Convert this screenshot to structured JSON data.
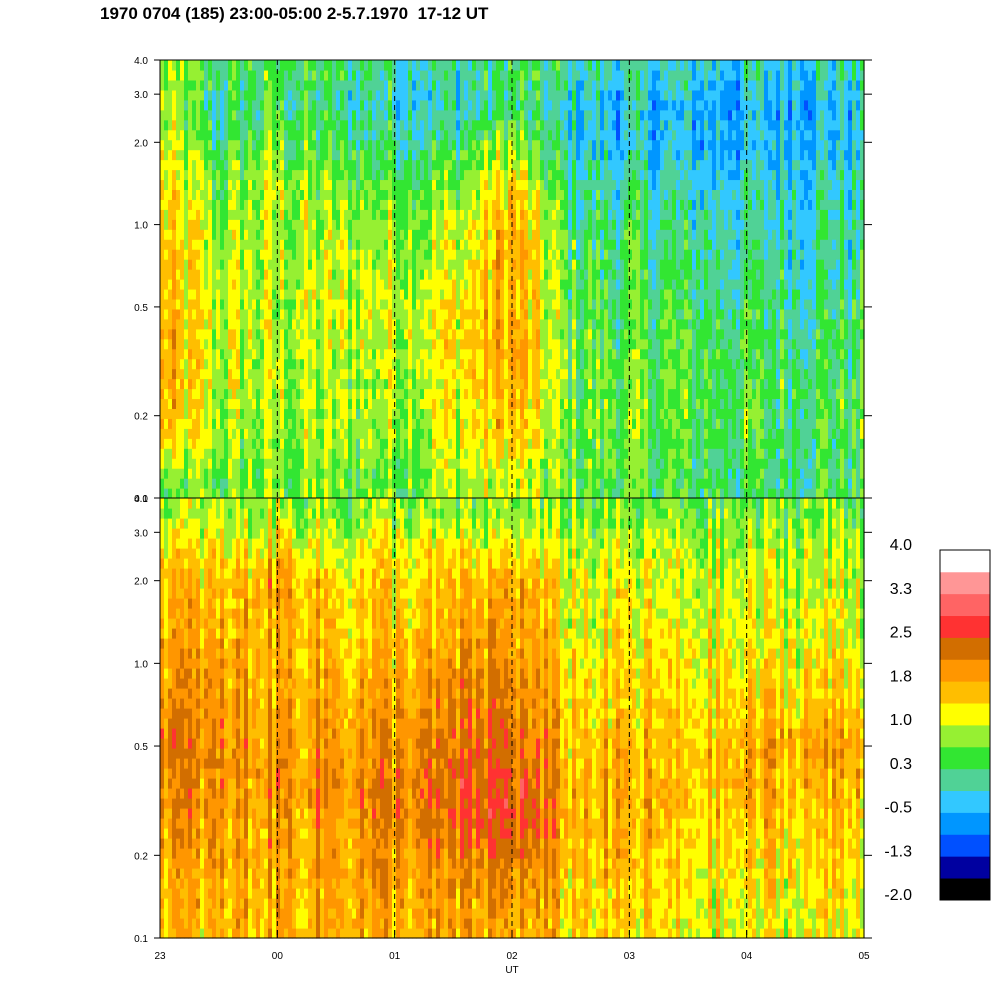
{
  "title": "1970 0704 (185) 23:00-05:00 2-5.7.1970  17-12 UT",
  "chart_data": [
    {
      "type": "heatmap",
      "panel": "top",
      "y_scale": "log",
      "ylim": [
        0.1,
        4.0
      ],
      "y_ticks": [
        0.1,
        0.2,
        0.5,
        1.0,
        2.0,
        3.0,
        4.0
      ],
      "y_tick_labels": [
        "0.1",
        "0.2",
        "0.5",
        "1.0",
        "2.0",
        "3.0",
        "4.0"
      ],
      "xlim": [
        23,
        29
      ],
      "x_marker_hours": [
        24,
        25,
        26,
        27,
        28
      ],
      "rows_log_freq": [
        0.12,
        0.18,
        0.25,
        0.35,
        0.5,
        0.7,
        1.0,
        1.4,
        2.0,
        2.7,
        3.5
      ],
      "cols_hour": [
        23.0,
        23.5,
        24.0,
        24.5,
        25.0,
        25.5,
        26.0,
        26.5,
        27.0,
        27.5,
        28.0,
        28.5
      ],
      "values": [
        [
          0.6,
          0.6,
          0.7,
          0.6,
          0.6,
          0.9,
          1.0,
          0.5,
          0.5,
          0.3,
          0.3,
          0.3
        ],
        [
          1.6,
          0.9,
          0.8,
          0.8,
          0.9,
          1.1,
          1.6,
          0.6,
          0.6,
          0.4,
          0.4,
          0.4
        ],
        [
          1.6,
          0.9,
          0.9,
          0.8,
          0.9,
          1.2,
          1.7,
          0.6,
          0.6,
          0.5,
          0.4,
          0.4
        ],
        [
          1.7,
          1.0,
          0.9,
          0.9,
          1.0,
          1.3,
          1.8,
          0.6,
          0.5,
          0.4,
          0.4,
          0.3
        ],
        [
          1.6,
          1.0,
          0.9,
          1.0,
          1.1,
          1.2,
          1.7,
          0.5,
          0.4,
          0.3,
          0.2,
          0.2
        ],
        [
          1.5,
          0.9,
          0.9,
          0.9,
          0.9,
          1.0,
          1.8,
          0.4,
          0.3,
          0.2,
          0.1,
          0.1
        ],
        [
          1.4,
          0.8,
          0.9,
          0.8,
          0.8,
          0.9,
          1.7,
          0.3,
          0.2,
          0.0,
          0.0,
          0.0
        ],
        [
          1.2,
          0.6,
          0.9,
          0.6,
          0.6,
          0.6,
          1.4,
          0.1,
          0.0,
          -0.2,
          -0.2,
          -0.1
        ],
        [
          1.0,
          0.3,
          0.6,
          0.3,
          0.2,
          0.2,
          0.9,
          -0.2,
          -0.3,
          -0.4,
          -0.4,
          -0.3
        ],
        [
          0.8,
          0.0,
          0.4,
          0.0,
          -0.1,
          -0.2,
          0.2,
          -0.3,
          -0.4,
          -0.5,
          -0.5,
          -0.4
        ],
        [
          0.9,
          0.2,
          0.4,
          0.2,
          0.1,
          0.0,
          0.3,
          0.0,
          -0.1,
          -0.2,
          -0.2,
          -0.1
        ]
      ]
    },
    {
      "type": "heatmap",
      "panel": "bottom",
      "y_scale": "log",
      "ylim": [
        0.1,
        4.0
      ],
      "y_ticks": [
        0.1,
        0.2,
        0.5,
        1.0,
        2.0,
        3.0,
        4.0
      ],
      "y_tick_labels": [
        "0.1",
        "0.2",
        "0.5",
        "1.0",
        "2.0",
        "3.0",
        "4.0"
      ],
      "xlim": [
        23,
        29
      ],
      "x_ticks": [
        23,
        24,
        25,
        26,
        27,
        28,
        29
      ],
      "x_tick_labels": [
        "23",
        "00",
        "01",
        "02",
        "03",
        "04",
        "05"
      ],
      "x_marker_hours": [
        24,
        25,
        26,
        27,
        28
      ],
      "xlabel": "UT",
      "rows_log_freq": [
        0.12,
        0.18,
        0.25,
        0.35,
        0.5,
        0.7,
        1.0,
        1.4,
        2.0,
        2.7,
        3.5
      ],
      "cols_hour": [
        23.0,
        23.5,
        24.0,
        24.5,
        25.0,
        25.5,
        26.0,
        26.5,
        27.0,
        27.5,
        28.0,
        28.5
      ],
      "values": [
        [
          1.6,
          1.6,
          1.7,
          1.8,
          1.7,
          1.7,
          1.8,
          1.4,
          1.4,
          1.2,
          1.1,
          1.2
        ],
        [
          1.7,
          1.7,
          1.8,
          1.9,
          1.9,
          1.9,
          2.2,
          1.6,
          1.5,
          1.3,
          1.3,
          1.4
        ],
        [
          1.9,
          1.8,
          1.8,
          1.9,
          2.0,
          2.1,
          2.6,
          1.7,
          1.6,
          1.5,
          1.5,
          1.5
        ],
        [
          2.1,
          1.9,
          2.0,
          2.1,
          2.1,
          2.3,
          2.5,
          1.7,
          1.6,
          1.6,
          1.6,
          1.7
        ],
        [
          2.3,
          2.0,
          1.9,
          2.0,
          1.9,
          2.1,
          2.4,
          1.6,
          1.6,
          1.5,
          1.7,
          1.8
        ],
        [
          2.0,
          1.9,
          1.8,
          1.9,
          1.8,
          2.0,
          2.2,
          1.5,
          1.4,
          1.4,
          1.4,
          1.5
        ],
        [
          1.8,
          1.8,
          1.7,
          1.7,
          1.6,
          1.8,
          2.0,
          1.3,
          1.3,
          1.3,
          1.2,
          1.3
        ],
        [
          1.7,
          1.6,
          1.8,
          1.5,
          1.5,
          1.6,
          1.9,
          1.2,
          1.2,
          1.1,
          1.1,
          1.1
        ],
        [
          1.6,
          1.5,
          1.9,
          1.4,
          1.4,
          1.4,
          1.8,
          1.1,
          1.1,
          1.0,
          1.0,
          1.0
        ],
        [
          1.3,
          1.2,
          1.4,
          1.1,
          1.1,
          1.1,
          1.3,
          0.9,
          0.9,
          0.9,
          0.8,
          0.9
        ],
        [
          0.8,
          0.8,
          0.9,
          0.7,
          0.7,
          0.7,
          0.8,
          0.6,
          0.6,
          0.6,
          0.6,
          0.6
        ]
      ]
    }
  ],
  "colorbar": {
    "colors": [
      "#000000",
      "#0000a0",
      "#0050ff",
      "#0096ff",
      "#32c8ff",
      "#50d296",
      "#32e632",
      "#96f032",
      "#ffff00",
      "#ffbe00",
      "#ff9600",
      "#d26e00",
      "#ff3232",
      "#ff6464",
      "#ff9696",
      "#ffffff"
    ],
    "min": -2.0,
    "max": 4.0,
    "tick_labels": [
      "4.0",
      "3.3",
      "2.5",
      "1.8",
      "1.0",
      "0.3",
      "-0.5",
      "-1.3",
      "-2.0"
    ]
  }
}
